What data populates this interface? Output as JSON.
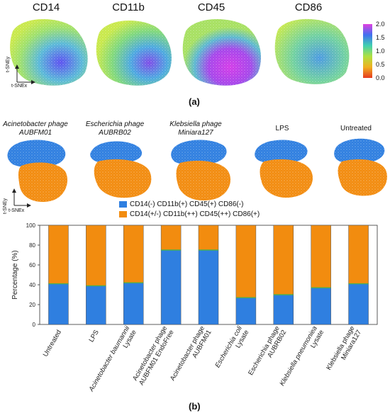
{
  "panel_a": {
    "label": "(a)",
    "markers": [
      "CD14",
      "CD11b",
      "CD45",
      "CD86"
    ],
    "colorbar_ticks": [
      "2.0",
      "1.5",
      "1.0",
      "0.5",
      "0.0"
    ],
    "axis_x": "t-SNEx",
    "axis_y": "t-SNEy"
  },
  "panel_groups": {
    "titles": [
      {
        "line1": "Acinetobacter phage",
        "line2": "AUBFM01"
      },
      {
        "line1": "Escherichia phage",
        "line2": "AUBRB02"
      },
      {
        "line1": "Klebsiella phage",
        "line2": "Miniara127"
      },
      {
        "line1": "LPS",
        "line2": ""
      },
      {
        "line1": "Untreated",
        "line2": ""
      }
    ],
    "axis_x": "t-SNEx",
    "axis_y": "t-SNEy"
  },
  "legend": {
    "items": [
      {
        "label": "CD14(-) CD11b(+) CD45(+) CD86(-)",
        "color": "#2f7fe0"
      },
      {
        "label": "CD14(+/-) CD11b(++) CD45(++) CD86(+)",
        "color": "#f28c0f"
      }
    ]
  },
  "panel_b": {
    "label": "(b)"
  },
  "colors": {
    "blue": "#2f7fe0",
    "orange": "#f28c0f",
    "green": "#4caf50"
  },
  "chart_data": {
    "type": "bar",
    "stacked": true,
    "ylabel": "Percentage (%)",
    "ylim": [
      0,
      100
    ],
    "yticks": [
      0,
      20,
      40,
      60,
      80,
      100
    ],
    "categories": [
      {
        "lines": [
          "Untreated"
        ],
        "italic": [
          false
        ]
      },
      {
        "lines": [
          "LPS"
        ],
        "italic": [
          false
        ]
      },
      {
        "lines": [
          "Acinetobacter baumannii",
          "Lysate"
        ],
        "italic": [
          true,
          false
        ]
      },
      {
        "lines": [
          "Acinetobacter phage",
          "AUBFM01 EndoFree"
        ],
        "italic": [
          false,
          false
        ]
      },
      {
        "lines": [
          "Acinetobacter phage",
          "AUBFM01"
        ],
        "italic": [
          false,
          false
        ]
      },
      {
        "lines": [
          "Escherichia coli",
          "Lysate"
        ],
        "italic": [
          true,
          false
        ]
      },
      {
        "lines": [
          "Escherichia phage",
          "AUBRB02"
        ],
        "italic": [
          false,
          false
        ]
      },
      {
        "lines": [
          "Klebsiella pneumoniea",
          "Lysate"
        ],
        "italic": [
          true,
          false
        ]
      },
      {
        "lines": [
          "Klebsiella phage",
          "Miniara127"
        ],
        "italic": [
          false,
          false
        ]
      }
    ],
    "series": [
      {
        "name": "CD14(-) CD11b(+) CD45(+) CD86(-)",
        "color": "#2f7fe0",
        "values": [
          41,
          39,
          42,
          75,
          75,
          27,
          30,
          37,
          41
        ]
      },
      {
        "name": "CD14(+/-) CD11b(++) CD45(++) CD86(+)",
        "color": "#f28c0f",
        "values": [
          59,
          61,
          58,
          25,
          25,
          73,
          70,
          63,
          59
        ]
      }
    ],
    "grid": false,
    "legend_position": "top"
  }
}
